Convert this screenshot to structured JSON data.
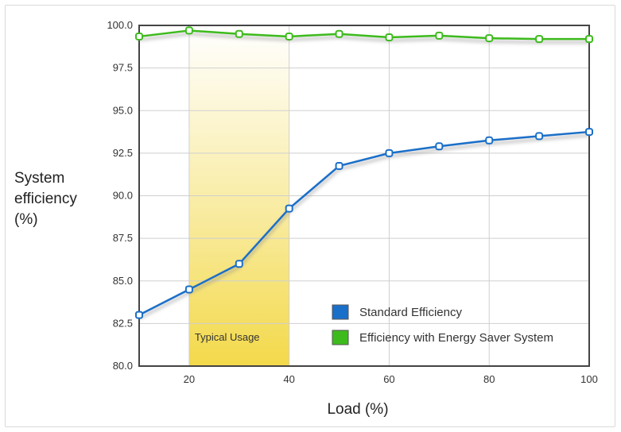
{
  "chart_data": {
    "type": "line",
    "ylabel_lines": [
      "System",
      "efficiency",
      "(%)"
    ],
    "xlabel": "Load (%)",
    "xlim": [
      10,
      100
    ],
    "ylim": [
      80,
      100
    ],
    "xticks": [
      20,
      40,
      60,
      80,
      100
    ],
    "yticks": [
      "80.0",
      "82.5",
      "85.0",
      "87.5",
      "90.0",
      "92.5",
      "95.0",
      "97.5",
      "100.0"
    ],
    "grid": true,
    "legend_position": "bottom-right",
    "x": [
      10,
      20,
      30,
      40,
      50,
      60,
      70,
      80,
      90,
      100
    ],
    "series": [
      {
        "name": "Standard Efficiency",
        "color": "#1a6fc9",
        "values": [
          83.0,
          84.5,
          86.0,
          89.25,
          91.75,
          92.5,
          92.9,
          93.25,
          93.5,
          93.75
        ]
      },
      {
        "name": "Efficiency with Energy Saver System",
        "color": "#3dbb1d",
        "values": [
          99.35,
          99.7,
          99.5,
          99.35,
          99.5,
          99.3,
          99.4,
          99.25,
          99.2,
          99.2
        ]
      }
    ],
    "highlight_band": {
      "label": "Typical Usage",
      "x_range": [
        20,
        40
      ],
      "color": "#f3d94a"
    }
  }
}
